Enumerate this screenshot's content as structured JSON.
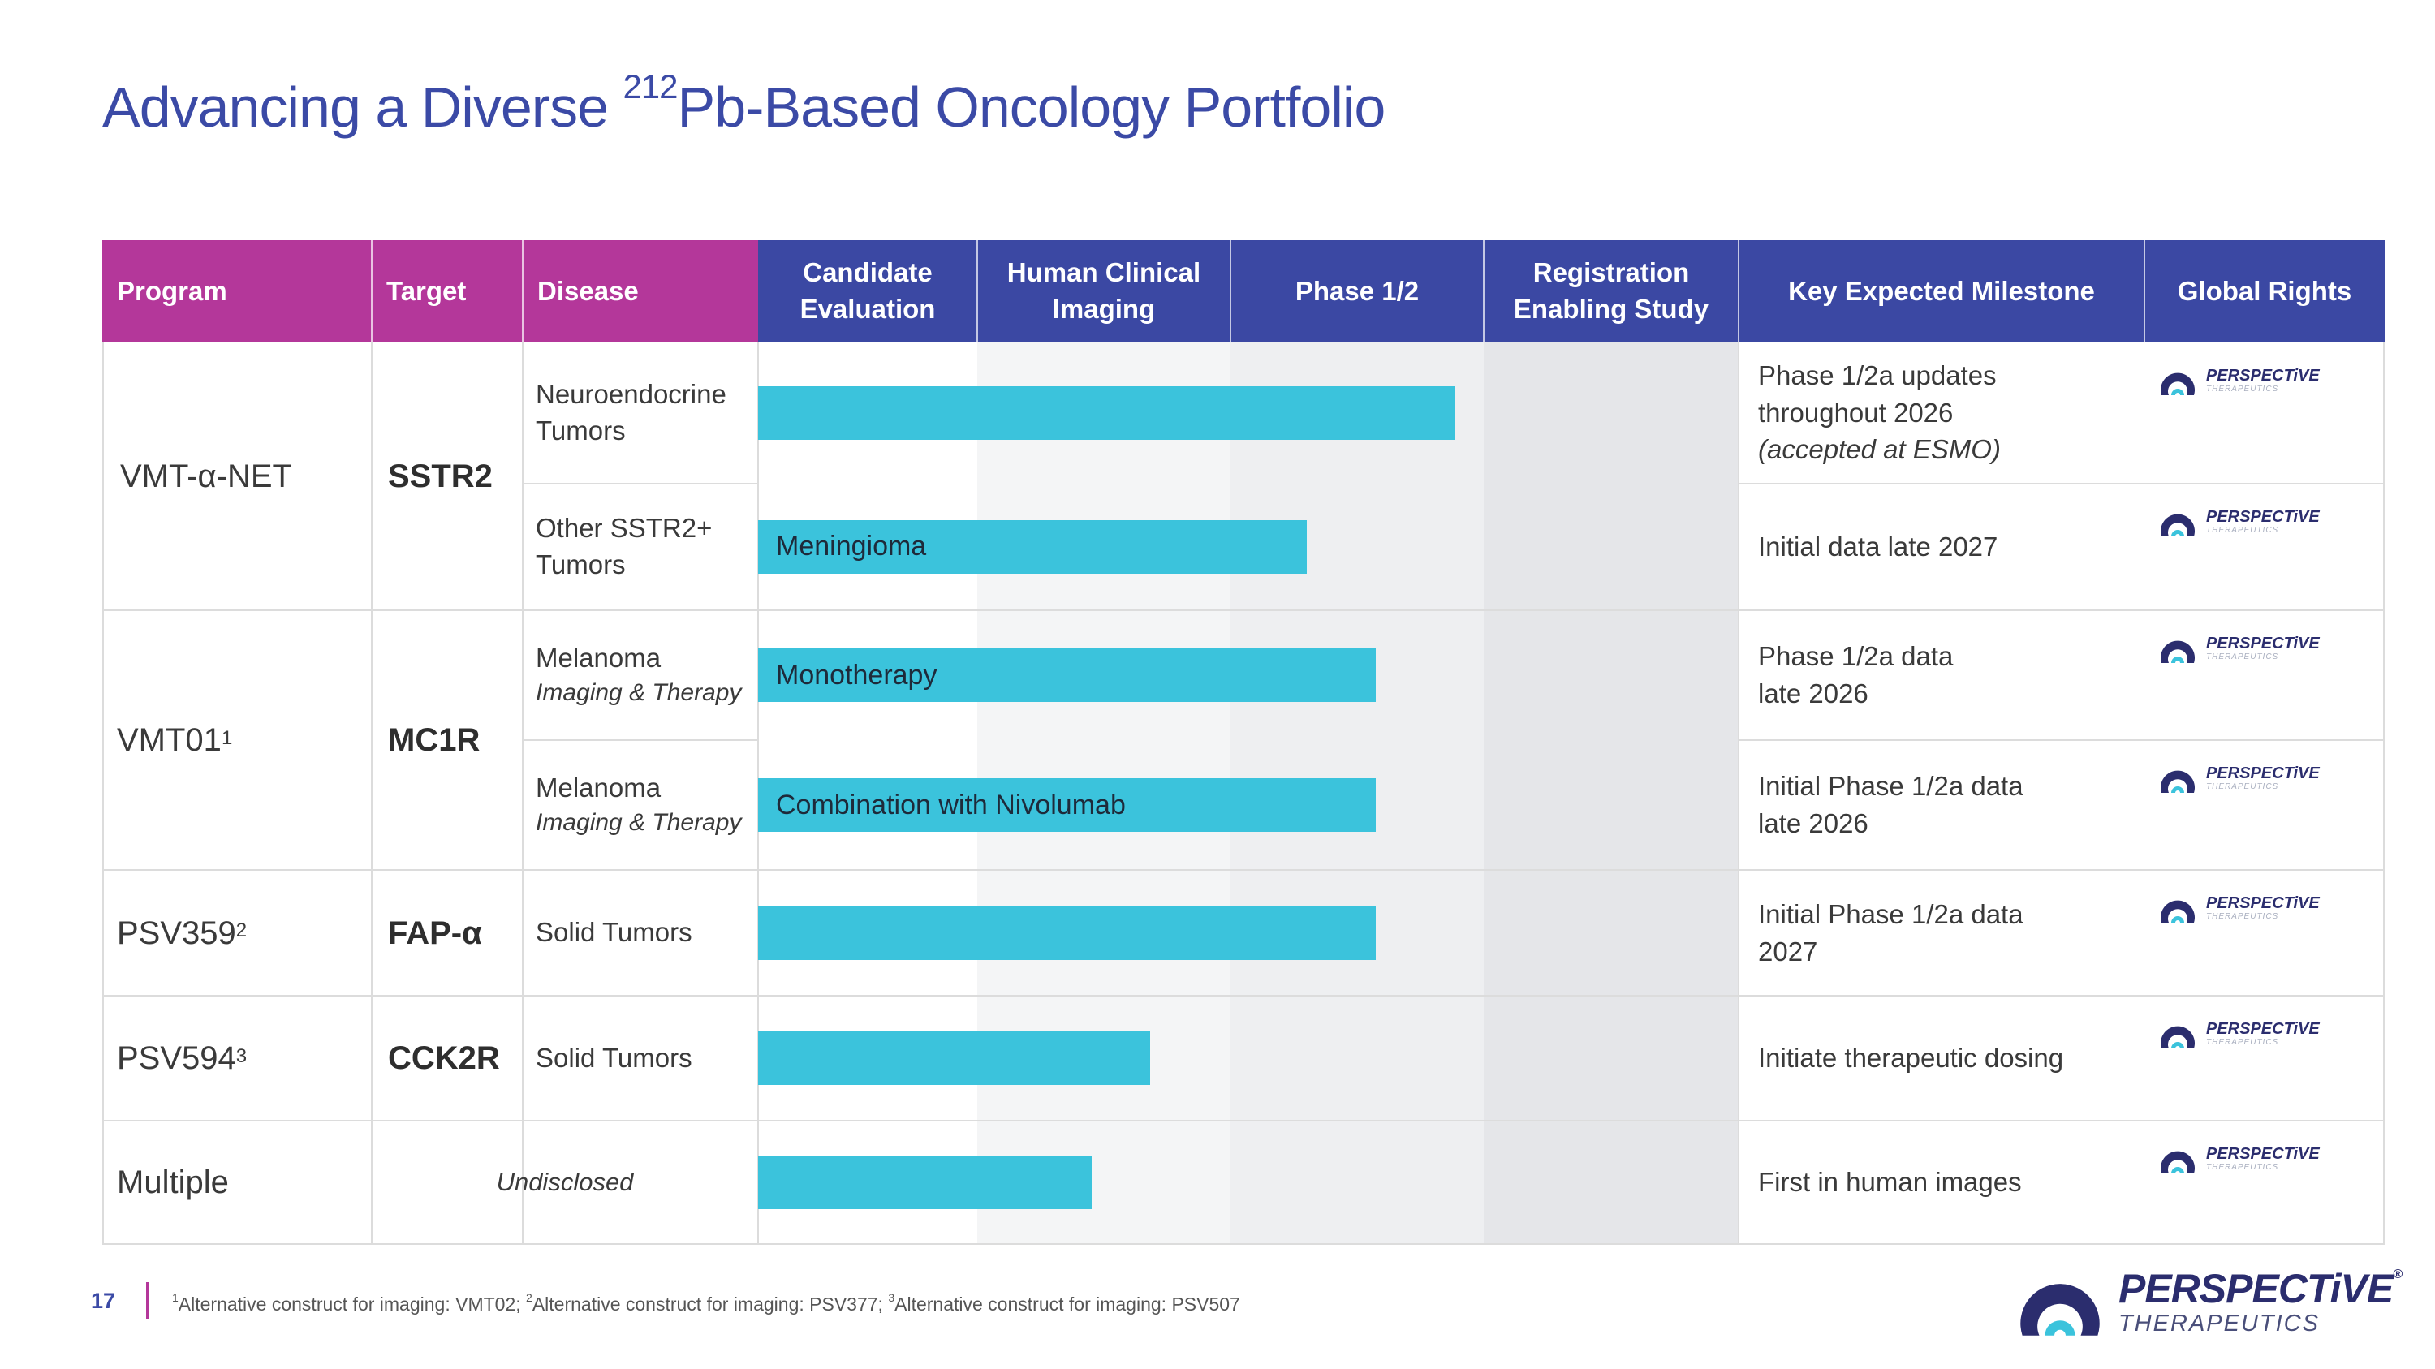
{
  "slide": {
    "title_pre": "Advancing a Diverse ",
    "title_sup": "212",
    "title_post": "Pb-Based Oncology Portfolio",
    "page_number": "17",
    "footnote": [
      {
        "sup": "1",
        "text": "Alternative construct for imaging: VMT02; "
      },
      {
        "sup": "2",
        "text": "Alternative construct for imaging: PSV377; "
      },
      {
        "sup": "3",
        "text": "Alternative construct for imaging: PSV507"
      }
    ]
  },
  "table": {
    "headers": {
      "program": "Program",
      "target": "Target",
      "disease": "Disease",
      "candidate": "Candidate Evaluation",
      "imaging": "Human Clinical Imaging",
      "phase": "Phase 1/2",
      "registration": "Registration Enabling Study",
      "milestone": "Key Expected Milestone",
      "rights": "Global Rights"
    },
    "programs": [
      {
        "name": "VMT-α-NET",
        "sup": "",
        "target": "SSTR2"
      },
      {
        "name": "VMT01",
        "sup": "1",
        "target": "MC1R"
      },
      {
        "name": "PSV359",
        "sup": "2",
        "target": "FAP-α"
      },
      {
        "name": "PSV594",
        "sup": "3",
        "target": "CCK2R"
      },
      {
        "name": "Multiple",
        "sup": "",
        "target": "Undisclosed"
      }
    ],
    "rows": [
      {
        "disease": "Neuroendocrine Tumors",
        "disease_sub": "",
        "bar_label": "",
        "progress": 0.71,
        "milestone": [
          "Phase 1/2a updates",
          "throughout 2026"
        ],
        "milestone_note": "(accepted at ESMO)"
      },
      {
        "disease": "Other SSTR2+ Tumors",
        "disease_sub": "",
        "bar_label": "Meningioma",
        "progress": 0.56,
        "milestone": [
          "Initial data late 2027"
        ],
        "milestone_note": ""
      },
      {
        "disease": "Melanoma",
        "disease_sub": "Imaging & Therapy",
        "bar_label": "Monotherapy",
        "progress": 0.63,
        "milestone": [
          "Phase 1/2a data",
          "late 2026"
        ],
        "milestone_note": ""
      },
      {
        "disease": "Melanoma",
        "disease_sub": "Imaging & Therapy",
        "bar_label": "Combination with Nivolumab",
        "progress": 0.63,
        "milestone": [
          "Initial Phase 1/2a data",
          "late 2026"
        ],
        "milestone_note": ""
      },
      {
        "disease": "Solid Tumors",
        "disease_sub": "",
        "bar_label": "",
        "progress": 0.63,
        "milestone": [
          "Initial Phase 1/2a data",
          "2027"
        ],
        "milestone_note": ""
      },
      {
        "disease": "Solid Tumors",
        "disease_sub": "",
        "bar_label": "",
        "progress": 0.4,
        "milestone": [
          "Initiate therapeutic dosing"
        ],
        "milestone_note": ""
      },
      {
        "disease": "",
        "disease_sub": "",
        "bar_label": "",
        "progress": 0.34,
        "milestone": [
          "First in human images"
        ],
        "milestone_note": ""
      }
    ]
  },
  "logo": {
    "word": "PERSPECTiVE",
    "sub": "THERAPEUTICS",
    "reg": "®"
  },
  "colors": {
    "header_pink": "#b4379a",
    "header_blue": "#3b48a3",
    "bar": "#3bc3dc",
    "title": "#3b4aa6"
  }
}
